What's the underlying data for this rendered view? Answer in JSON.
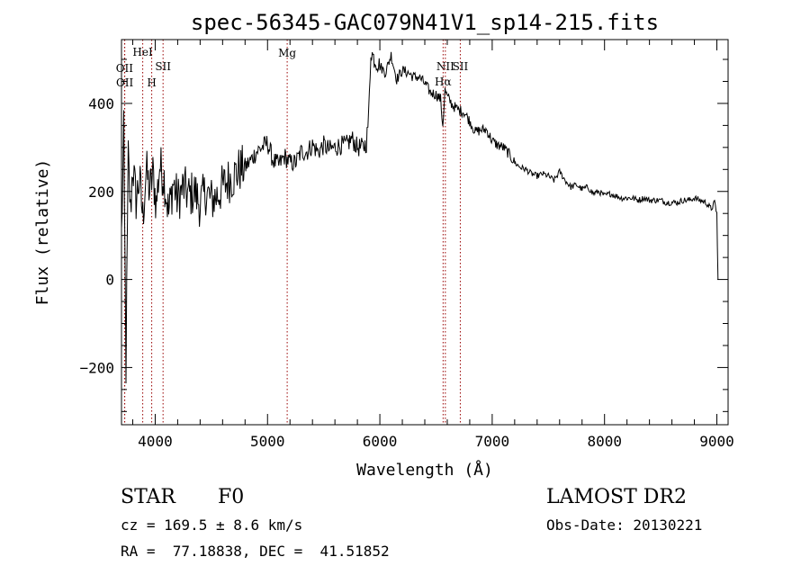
{
  "chart_data": {
    "type": "line",
    "title": "spec-56345-GAC079N41V1_sp14-215.fits",
    "xlabel": "Wavelength (Å)",
    "ylabel": "Flux (relative)",
    "xlim": [
      3700,
      9100
    ],
    "ylim": [
      -330,
      545
    ],
    "xticks": [
      4000,
      5000,
      6000,
      7000,
      8000,
      9000
    ],
    "xtick_labels": [
      "4000",
      "5000",
      "6000",
      "7000",
      "8000",
      "9000"
    ],
    "yticks": [
      -200,
      0,
      200,
      400
    ],
    "ytick_labels": [
      "−200",
      "0",
      "200",
      "400"
    ],
    "grid": false,
    "line_color": "#000000",
    "line_marker_color": "#990000",
    "spectral_lines": [
      {
        "label": "OII",
        "wavelength": 3727
      },
      {
        "label": "OII",
        "wavelength": 3729
      },
      {
        "label": "HeI",
        "wavelength": 3889
      },
      {
        "label": "H",
        "wavelength": 3969
      },
      {
        "label": "SII",
        "wavelength": 4070
      },
      {
        "label": "Mg",
        "wavelength": 5175
      },
      {
        "label": "NII",
        "wavelength": 6583
      },
      {
        "label": "Hα",
        "wavelength": 6563
      },
      {
        "label": "SII",
        "wavelength": 6716
      }
    ],
    "series": [
      {
        "x": [
          3700,
          3720,
          3740,
          3760,
          3780,
          3800,
          3830,
          3860,
          3890,
          3920,
          3950,
          3980,
          4010,
          4040,
          4080,
          4120,
          4160,
          4200,
          4250,
          4300,
          4350,
          4400,
          4450,
          4500,
          4550,
          4600,
          4650,
          4700,
          4750,
          4800,
          4850,
          4900,
          4950,
          5000,
          5050,
          5100,
          5150,
          5200,
          5250,
          5300,
          5350,
          5400,
          5450,
          5500,
          5550,
          5600,
          5650,
          5700,
          5750,
          5800,
          5850,
          5880,
          5900,
          5920,
          5950,
          6000,
          6050,
          6100,
          6150,
          6200,
          6250,
          6300,
          6350,
          6400,
          6450,
          6500,
          6540,
          6560,
          6580,
          6600,
          6650,
          6700,
          6750,
          6800,
          6850,
          6900,
          6950,
          7000,
          7050,
          7100,
          7150,
          7200,
          7250,
          7300,
          7350,
          7400,
          7450,
          7500,
          7550,
          7600,
          7650,
          7700,
          7750,
          7800,
          7850,
          7900,
          7950,
          8000,
          8050,
          8100,
          8150,
          8200,
          8250,
          8300,
          8350,
          8400,
          8450,
          8500,
          8550,
          8600,
          8650,
          8700,
          8750,
          8800,
          8850,
          8900,
          8920,
          8950,
          8980,
          9000,
          9010
        ],
        "y": [
          100,
          330,
          -200,
          280,
          150,
          260,
          180,
          230,
          140,
          250,
          200,
          240,
          170,
          260,
          230,
          150,
          220,
          180,
          210,
          190,
          200,
          170,
          200,
          180,
          190,
          210,
          225,
          235,
          250,
          255,
          270,
          290,
          300,
          310,
          270,
          260,
          280,
          265,
          265,
          290,
          290,
          305,
          290,
          305,
          295,
          300,
          305,
          305,
          320,
          300,
          300,
          310,
          370,
          520,
          500,
          485,
          470,
          510,
          455,
          475,
          470,
          460,
          460,
          445,
          425,
          420,
          410,
          350,
          430,
          415,
          395,
          385,
          380,
          360,
          335,
          340,
          340,
          315,
          305,
          300,
          285,
          265,
          255,
          250,
          240,
          235,
          240,
          235,
          225,
          245,
          225,
          210,
          215,
          205,
          210,
          195,
          200,
          190,
          195,
          190,
          185,
          185,
          185,
          180,
          185,
          180,
          180,
          180,
          175,
          175,
          175,
          180,
          180,
          185,
          180,
          175,
          170,
          160,
          175,
          150,
          0
        ]
      }
    ]
  },
  "info": {
    "class_label": "STAR",
    "subclass_label": "F0",
    "redshift_text": "cz = 169.5 ± 8.6 km/s",
    "coords_text": "RA =  77.18838, DEC =  41.51852",
    "survey_label": "LAMOST DR2",
    "obs_date_text": "Obs-Date: 20130221"
  }
}
